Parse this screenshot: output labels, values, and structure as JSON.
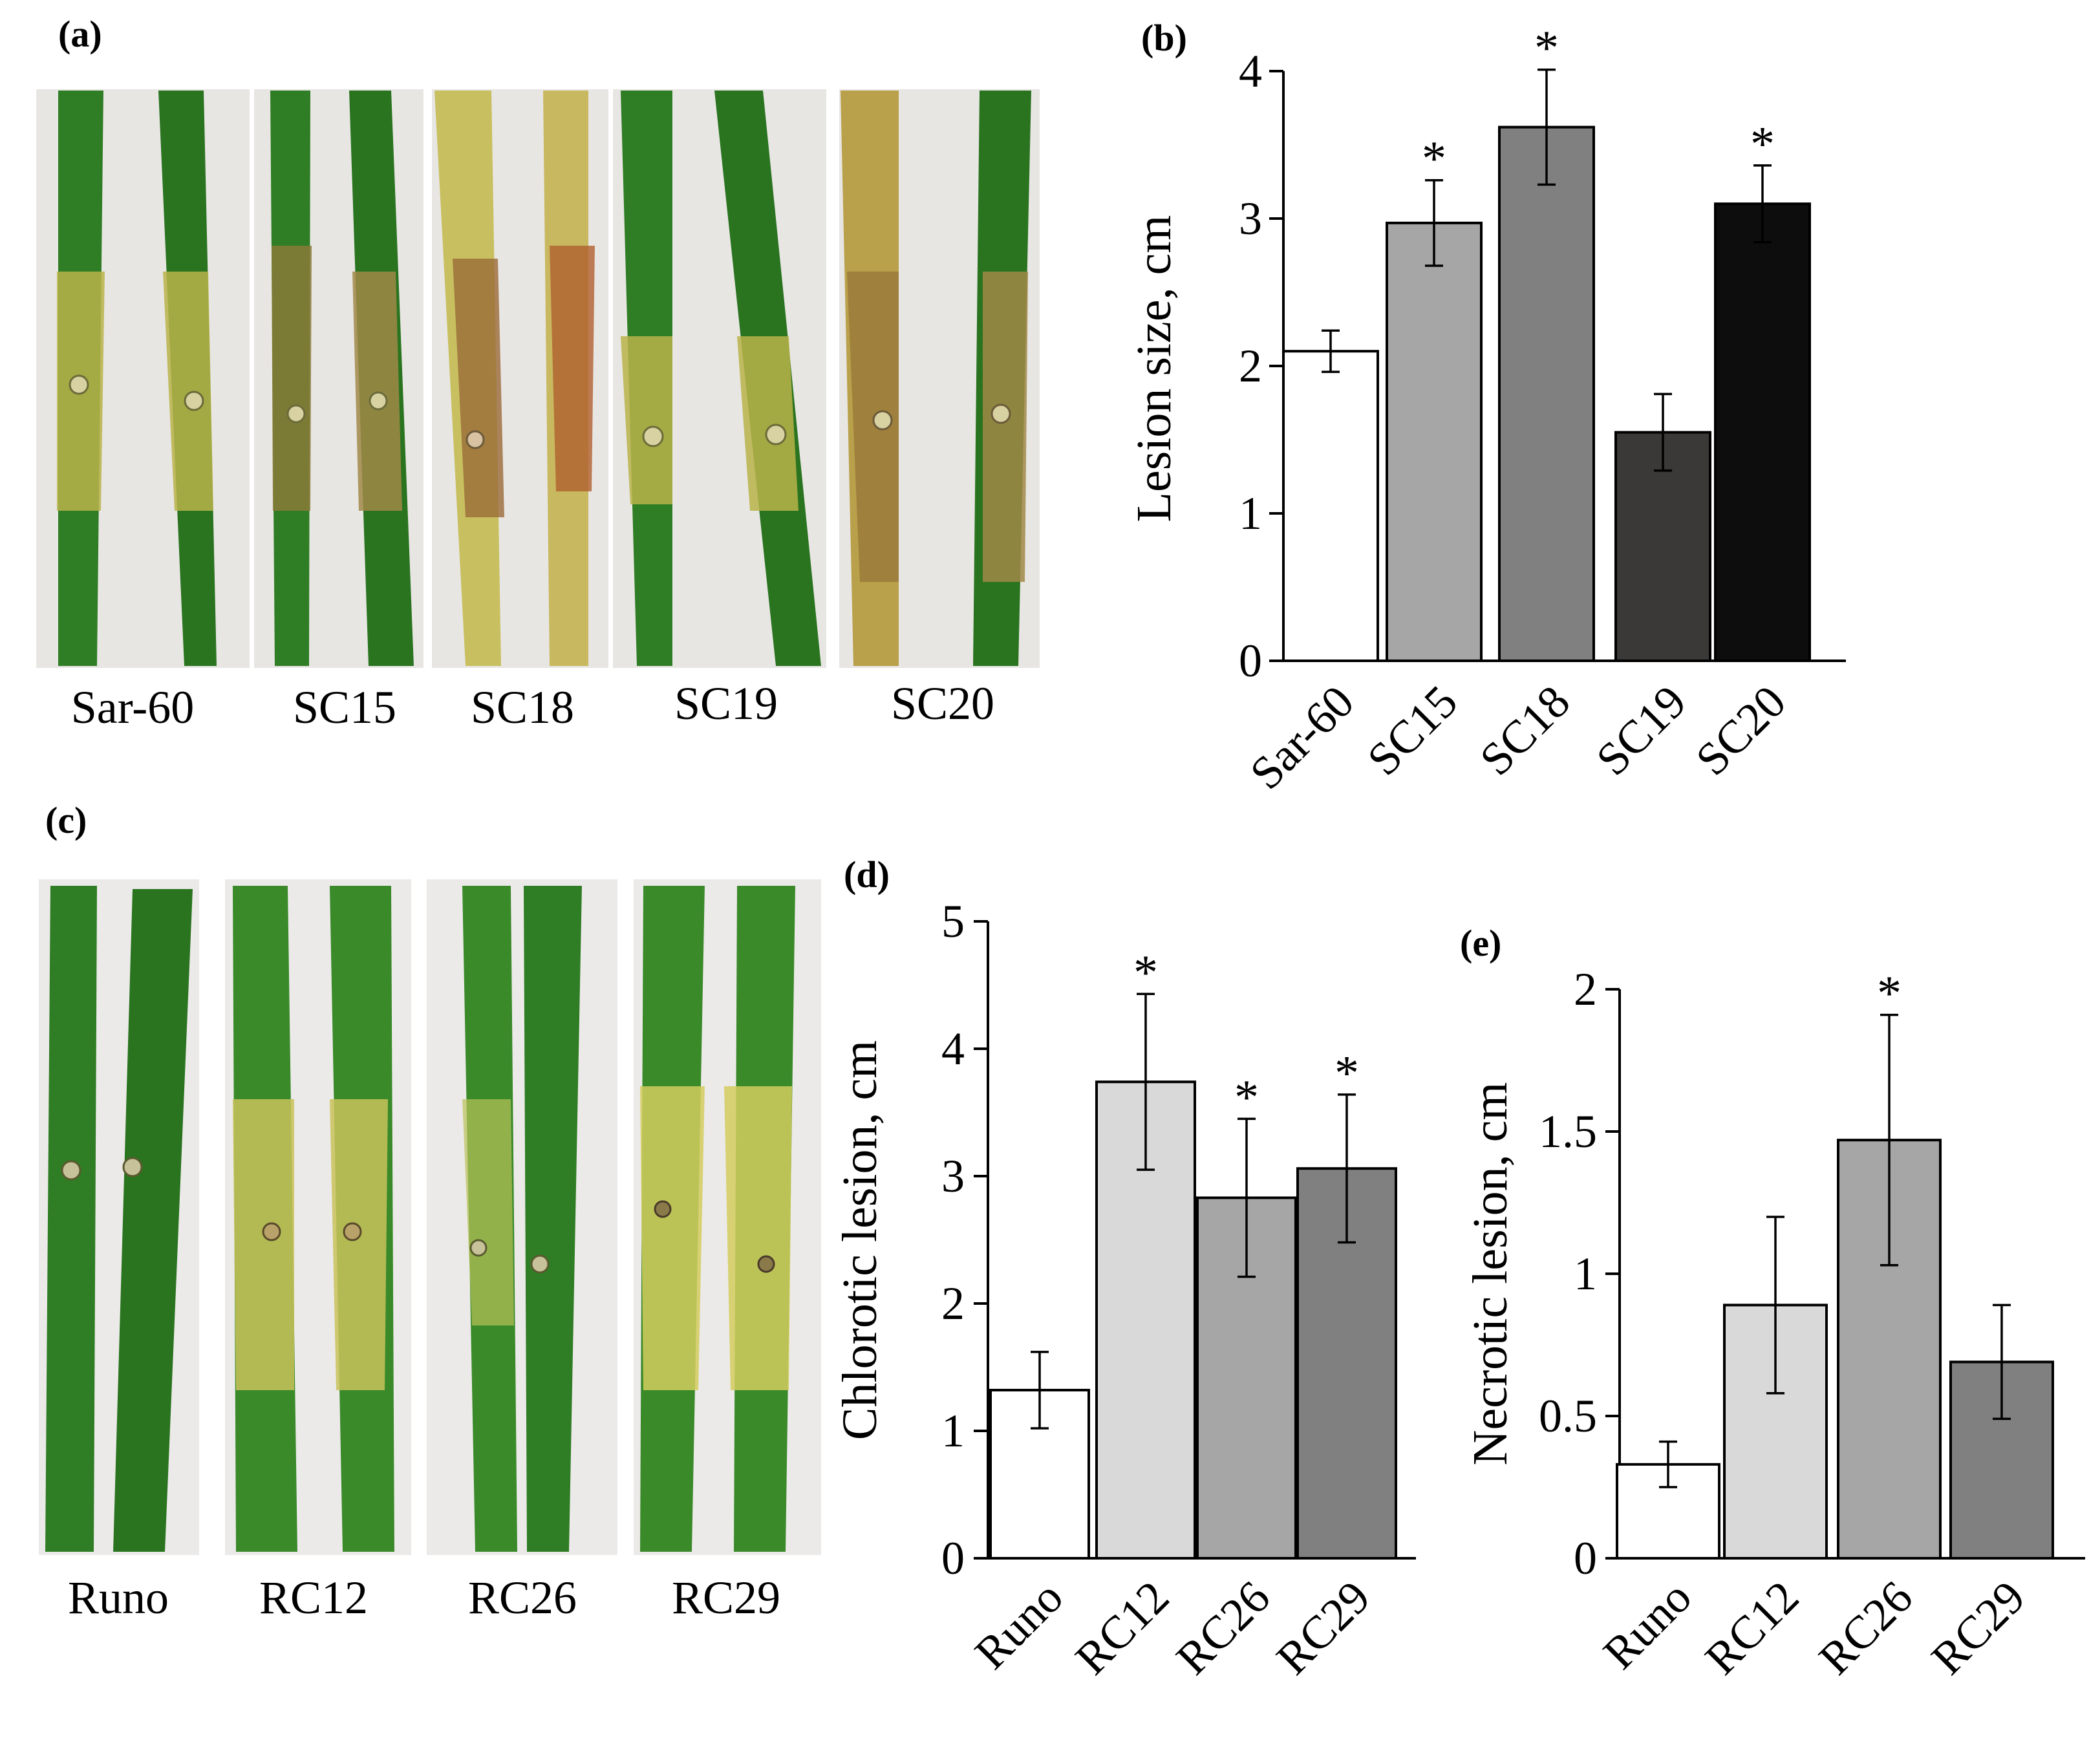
{
  "panels": {
    "a": {
      "letter": "(a)",
      "labels": [
        "Sar-60",
        "SC15",
        "SC18",
        "SC19",
        "SC20"
      ]
    },
    "c": {
      "letter": "(c)",
      "labels": [
        "Runo",
        "RC12",
        "RC26",
        "RC29"
      ]
    }
  },
  "colors": {
    "leaf_green": "#2f7d24",
    "leaf_dark": "#1f5a18",
    "chlorotic_yellow": "#c9c25a",
    "necrotic_brown": "#8a6a2e",
    "background_paper": "#e9e7e4"
  },
  "chart_data": [
    {
      "id": "b",
      "letter": "(b)",
      "type": "bar",
      "categories": [
        "Sar-60",
        "SC15",
        "SC18",
        "SC19",
        "SC20"
      ],
      "values": [
        2.1,
        2.97,
        3.62,
        1.55,
        3.1
      ],
      "errors": [
        0.14,
        0.29,
        0.39,
        0.26,
        0.26
      ],
      "significant": [
        false,
        true,
        true,
        false,
        true
      ],
      "significance_marker": "*",
      "colors": [
        "#ffffff",
        "#a6a6a6",
        "#808080",
        "#3b3838",
        "#0d0d0d"
      ],
      "ylabel": "Lesion size, cm",
      "ylim": [
        0,
        4
      ],
      "yticks": [
        "0",
        "1",
        "2",
        "3",
        "4"
      ]
    },
    {
      "id": "d",
      "letter": "(d)",
      "type": "bar",
      "categories": [
        "Runo",
        "RC12",
        "RC26",
        "RC29"
      ],
      "values": [
        1.32,
        3.74,
        2.83,
        3.06
      ],
      "errors": [
        0.3,
        0.69,
        0.62,
        0.58
      ],
      "significant": [
        false,
        true,
        true,
        true
      ],
      "significance_marker": "*",
      "colors": [
        "#ffffff",
        "#d9d9d9",
        "#a6a6a6",
        "#808080"
      ],
      "ylabel": "Chlorotic  lesion, cm",
      "ylim": [
        0,
        5
      ],
      "yticks": [
        "0",
        "1",
        "2",
        "3",
        "4",
        "5"
      ]
    },
    {
      "id": "e",
      "letter": "(e)",
      "type": "bar",
      "categories": [
        "Runo",
        "RC12",
        "RC26",
        "RC29"
      ],
      "values": [
        0.33,
        0.89,
        1.47,
        0.69
      ],
      "errors": [
        0.08,
        0.31,
        0.44,
        0.2
      ],
      "significant": [
        false,
        false,
        true,
        false
      ],
      "significance_marker": "*",
      "colors": [
        "#ffffff",
        "#d9d9d9",
        "#a6a6a6",
        "#808080"
      ],
      "ylabel": "Necrotic  lesion, cm",
      "ylim": [
        0,
        2
      ],
      "yticks": [
        "0",
        "0.5",
        "1",
        "1.5",
        "2"
      ]
    }
  ]
}
